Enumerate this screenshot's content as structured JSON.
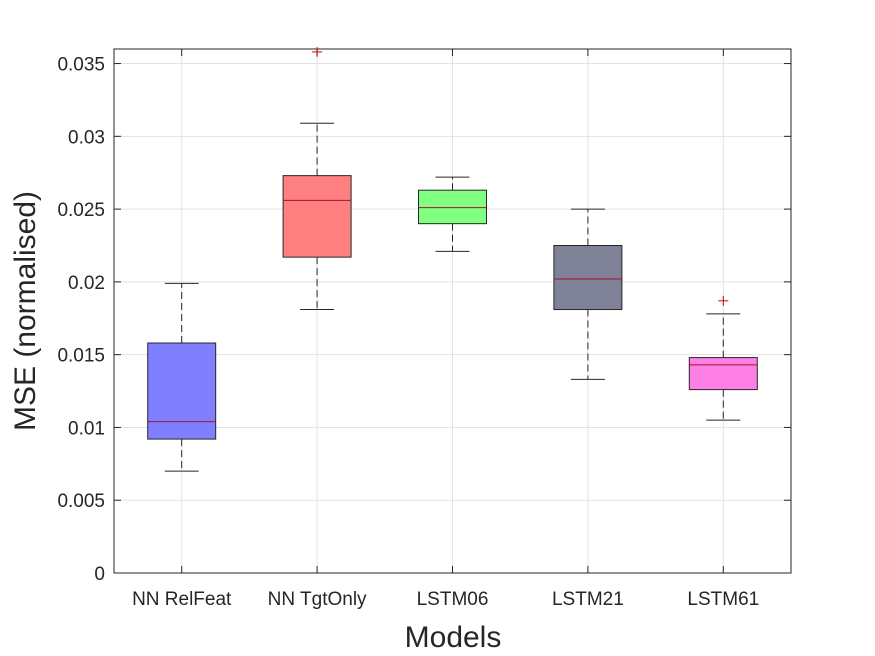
{
  "chart_data": {
    "type": "boxplot",
    "title": "",
    "xlabel": "Models",
    "ylabel": "MSE (normalised)",
    "ylim": [
      0,
      0.036
    ],
    "yticks": [
      0,
      0.005,
      0.01,
      0.015,
      0.02,
      0.025,
      0.03,
      0.035
    ],
    "ytick_labels": [
      "0",
      "0.005",
      "0.01",
      "0.015",
      "0.02",
      "0.025",
      "0.03",
      "0.035"
    ],
    "grid": true,
    "categories": [
      "NN RelFeat",
      "NN TgtOnly",
      "LSTM06",
      "LSTM21",
      "LSTM61"
    ],
    "boxes": [
      {
        "name": "NN RelFeat",
        "whisker_low": 0.007,
        "q1": 0.0092,
        "median": 0.0104,
        "q3": 0.0158,
        "whisker_high": 0.0199,
        "outliers": [],
        "color": "#7f7fff"
      },
      {
        "name": "NN TgtOnly",
        "whisker_low": 0.0181,
        "q1": 0.0217,
        "median": 0.0256,
        "q3": 0.0273,
        "whisker_high": 0.0309,
        "outliers": [
          0.0358
        ],
        "color": "#ff8080"
      },
      {
        "name": "LSTM06",
        "whisker_low": 0.0221,
        "q1": 0.024,
        "median": 0.0251,
        "q3": 0.0263,
        "whisker_high": 0.0272,
        "outliers": [],
        "color": "#80ff80"
      },
      {
        "name": "LSTM21",
        "whisker_low": 0.0133,
        "q1": 0.0181,
        "median": 0.0202,
        "q3": 0.0225,
        "whisker_high": 0.025,
        "outliers": [],
        "color": "#7f8197"
      },
      {
        "name": "LSTM61",
        "whisker_low": 0.0105,
        "q1": 0.0126,
        "median": 0.0143,
        "q3": 0.0148,
        "whisker_high": 0.0178,
        "outliers": [
          0.0187
        ],
        "color": "#ff80e5"
      }
    ],
    "median_color": "#a2142f",
    "outlier_color": "#d40000",
    "outlier_marker": "+"
  }
}
